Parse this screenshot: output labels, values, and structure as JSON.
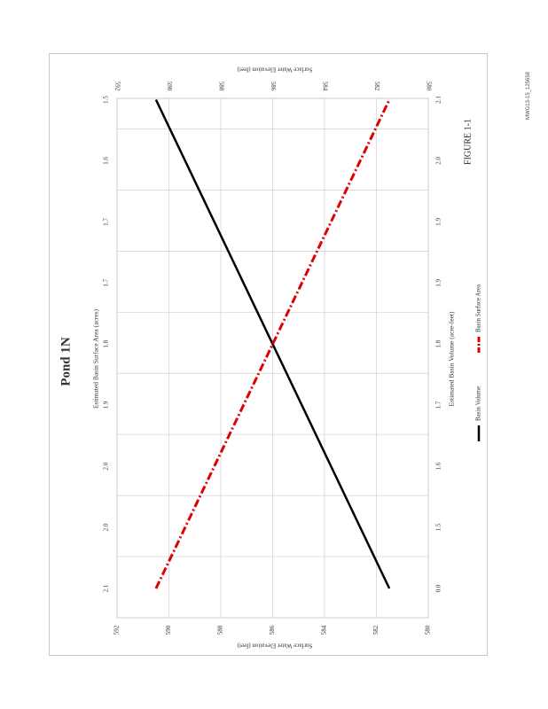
{
  "figure_label": "FIGURE 1-1",
  "document_id": "MWG13-15_125658",
  "chart_data": {
    "type": "line",
    "title": "Pond 1N",
    "x_label": "Estimated Basin Volume (acre-feet)",
    "x_ticks": [
      "0.0",
      "1.5",
      "1.6",
      "1.7",
      "1.8",
      "1.9",
      "1.9",
      "2.0",
      "2.1"
    ],
    "x_ticks_top": [
      "2.1",
      "2.0",
      "2.0",
      "1.9",
      "1.8",
      "1.7",
      "1.7",
      "1.6",
      "1.5"
    ],
    "x_label_top": "Estimated Basin Surface Area (acres)",
    "y_label": "Surface Water Elevation (feet)",
    "y_label_right": "Surface Water Elevation (feet)",
    "ylim": [
      580,
      592
    ],
    "y_ticks": [
      "580",
      "582",
      "584",
      "586",
      "588",
      "590",
      "592"
    ],
    "grid": true,
    "legend_position": "bottom",
    "orientation": "page rotated 90 degrees counter-clockwise",
    "series": [
      {
        "name": "Basin Volume",
        "color": "#000000",
        "style": "solid",
        "points": [
          [
            0.0,
            581.5
          ],
          [
            2.1,
            590.5
          ]
        ]
      },
      {
        "name": "Basin Surface Area",
        "color": "#e00000",
        "style": "dash-dot",
        "points": [
          [
            0.0,
            590.5
          ],
          [
            2.1,
            581.5
          ]
        ]
      }
    ]
  }
}
